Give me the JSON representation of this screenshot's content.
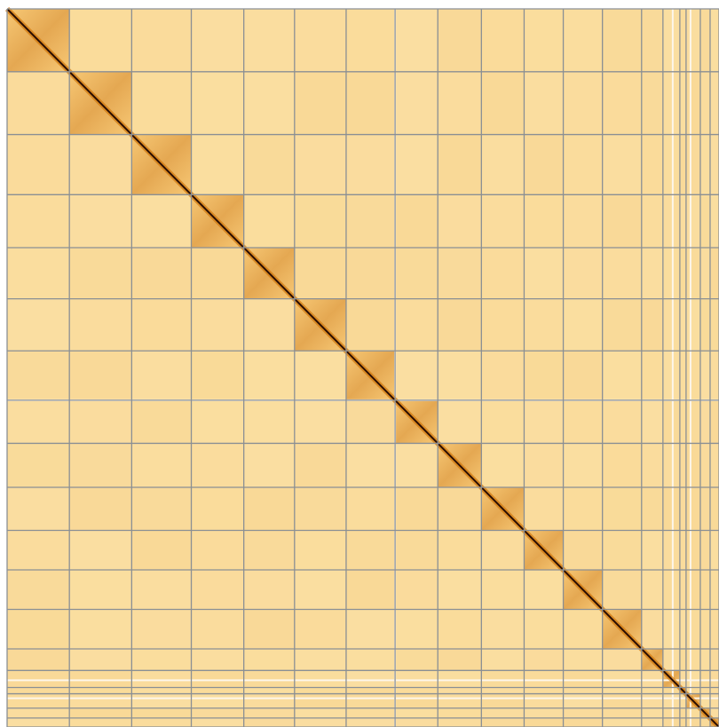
{
  "chart_data": {
    "type": "heatmap",
    "title": "",
    "xlabel": "",
    "ylabel": "",
    "chromosome_boundaries": [
      0,
      70,
      140,
      207,
      266,
      323,
      381,
      436,
      484,
      533,
      581,
      625,
      669,
      713,
      737,
      756,
      763,
      779,
      790,
      800
    ],
    "grid": true,
    "colors": {
      "background": "#fbe1a6",
      "low": "#fde8bb",
      "mid": "#f3b34d",
      "high": "#d2790d",
      "diagonal": "#2a0d00",
      "grid_line": "#8a8f94",
      "gap_line": "#fdf6ea"
    }
  }
}
